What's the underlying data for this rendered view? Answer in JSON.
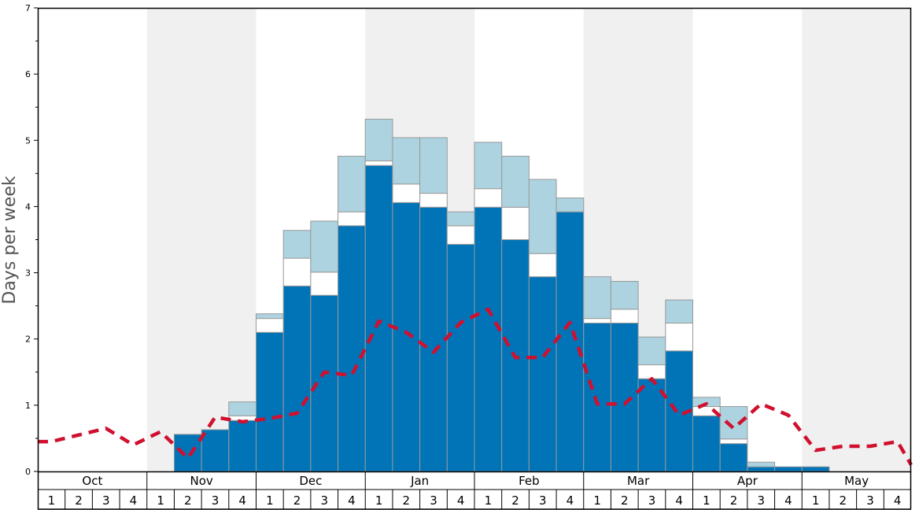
{
  "chart_data": {
    "type": "bar",
    "ylabel": "Days per week",
    "ylim": [
      0,
      7
    ],
    "yticks": [
      0,
      1,
      2,
      3,
      4,
      5,
      6,
      7
    ],
    "grid": false,
    "months": [
      "Oct",
      "Nov",
      "Dec",
      "Jan",
      "Feb",
      "Mar",
      "Apr",
      "May"
    ],
    "weeks": [
      "1",
      "2",
      "3",
      "4"
    ],
    "shaded_months": [
      "Nov",
      "Jan",
      "Mar",
      "May"
    ],
    "colors": {
      "primary": "#0074b7",
      "secondary": "#ffffff",
      "tertiary": "#add3e0",
      "bar_edge": "#999999",
      "average_line": "#d0102f",
      "band_shade": "#f0f0f0"
    },
    "series": [
      {
        "values": [
          0,
          0,
          0,
          0,
          0,
          0.56,
          0.63,
          0.77,
          2.1,
          2.8,
          2.66,
          3.71,
          4.62,
          4.06,
          3.99,
          3.43,
          3.99,
          3.5,
          2.94,
          3.92,
          2.24,
          2.24,
          1.4,
          1.82,
          0.84,
          0.42,
          0.07,
          0.07,
          0.07,
          0,
          0,
          0
        ]
      },
      {
        "values": [
          0,
          0,
          0,
          0,
          0,
          0,
          0,
          0.07,
          0.21,
          0.42,
          0.35,
          0.21,
          0.07,
          0.28,
          0.21,
          0.28,
          0.28,
          0.49,
          0.35,
          0,
          0.07,
          0.21,
          0.21,
          0.42,
          0.14,
          0.07,
          0,
          0,
          0,
          0,
          0,
          0
        ]
      },
      {
        "values": [
          0,
          0,
          0,
          0,
          0,
          0,
          0,
          0.21,
          0.07,
          0.42,
          0.77,
          0.84,
          0.63,
          0.7,
          0.84,
          0.21,
          0.7,
          0.77,
          1.12,
          0.21,
          0.63,
          0.42,
          0.42,
          0.35,
          0.14,
          0.49,
          0.07,
          0,
          0,
          0,
          0,
          0
        ]
      },
      {
        "values": [
          0.45,
          0.55,
          0.65,
          0.4,
          0.6,
          0.2,
          0.82,
          0.75,
          0.8,
          0.88,
          1.5,
          1.45,
          2.27,
          2.1,
          1.8,
          2.25,
          2.45,
          1.72,
          1.72,
          2.25,
          1.02,
          1.02,
          1.4,
          0.85,
          1.02,
          0.65,
          1.02,
          0.85,
          0.32,
          0.38,
          0.38,
          0.45
        ]
      }
    ],
    "end_value": 0.1
  }
}
